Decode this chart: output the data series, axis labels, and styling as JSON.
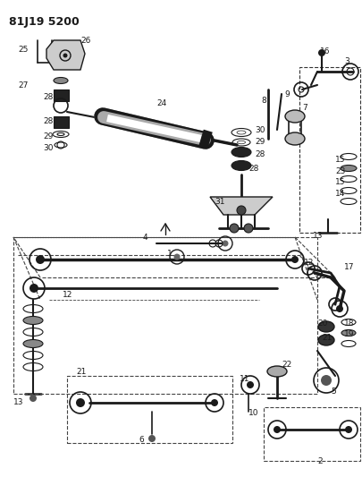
{
  "title": "81J19 5200",
  "bg": "#ffffff",
  "lc": "#1a1a1a",
  "figsize": [
    4.06,
    5.33
  ],
  "dpi": 100
}
